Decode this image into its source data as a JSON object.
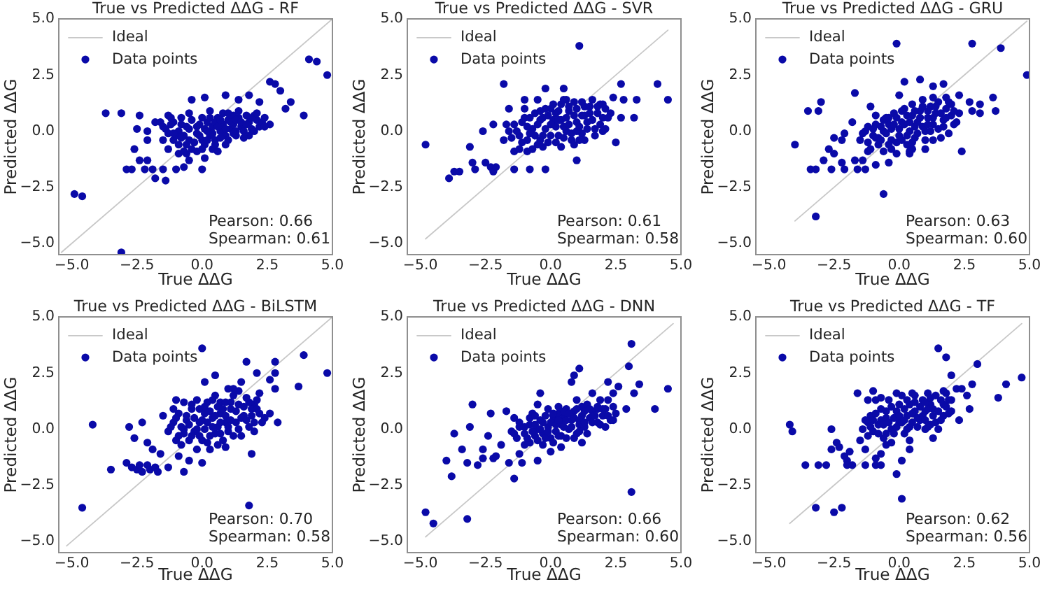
{
  "chart_data": [
    {
      "type": "scatter",
      "title": "True vs Predicted ΔΔG - RF",
      "xlabel": "True ΔΔG",
      "ylabel": "Predicted ΔΔG",
      "xlim": [
        -5.5,
        5
      ],
      "ylim": [
        -5.5,
        5
      ],
      "xticks": [
        {
          "value": -5,
          "label": "−5.0"
        },
        {
          "value": -2.5,
          "label": "−2.5"
        },
        {
          "value": 0,
          "label": "0.0"
        },
        {
          "value": 2.5,
          "label": "2.5"
        },
        {
          "value": 5,
          "label": "5.0"
        }
      ],
      "yticks": [
        {
          "value": -5,
          "label": "−5.0"
        },
        {
          "value": -2.5,
          "label": "−2.5"
        },
        {
          "value": 0,
          "label": "0.0"
        },
        {
          "value": 2.5,
          "label": "2.5"
        },
        {
          "value": 5,
          "label": "5.0"
        }
      ],
      "legend": "top left",
      "marker": "circle",
      "annotations": [
        "Pearson: 0.66",
        "Spearman: 0.61"
      ],
      "series": [
        {
          "name": "Ideal",
          "type": "line",
          "marker": "none",
          "color": "#c8c8c8",
          "x": [
            -5.4,
            5.0
          ],
          "values": [
            -5.4,
            5.0
          ]
        },
        {
          "name": "Data points",
          "color": "#0a0aa8",
          "x": [
            -4.9,
            -4.6,
            -3.7,
            -3.1,
            -3.1,
            -2.4,
            -2.5,
            -2.9,
            -2.7,
            -2.6,
            -2.4,
            -2.1,
            -2.2,
            -1.9,
            -1.8,
            -1.4,
            -1.5,
            -1.0,
            -0.7,
            0.0,
            -2.1,
            -2.1,
            -1.8,
            -1.6,
            -1.3,
            -0.5,
            -0.4,
            0.1,
            0.9,
            1.4,
            1.8,
            2.2,
            2.6,
            2.8,
            3.0,
            3.2,
            3.4,
            3.9,
            4.1,
            4.4,
            4.8,
            2.6,
            2.4,
            2.0,
            -1.5,
            -1.3,
            -1.1,
            -0.9,
            -0.9,
            -0.7,
            -0.6,
            -0.5,
            -0.4,
            -0.2,
            -0.1,
            0.0,
            0.1,
            0.1,
            0.2,
            0.3,
            0.4,
            0.5,
            0.6,
            0.7,
            0.8,
            0.9,
            1.0,
            1.1,
            1.2,
            1.3,
            1.4,
            1.5,
            1.6,
            1.7,
            1.8,
            1.9,
            2.1,
            2.2,
            -1.3,
            -0.9,
            -0.6,
            -0.2,
            -1.5,
            -1.1,
            -0.8,
            0.4,
            0.9,
            1.2,
            1.8,
            2.3,
            -0.5,
            0.1,
            -1.4,
            -1.2,
            -1.0,
            -0.8,
            -0.8,
            -0.6,
            -0.4,
            -0.3,
            -0.2,
            -0.1,
            0.0,
            0.0,
            0.2,
            0.2,
            0.3,
            0.4,
            0.5,
            0.5,
            0.6,
            0.7,
            0.7,
            0.8,
            0.9,
            1.0,
            1.0,
            1.1,
            1.2,
            1.3,
            1.4,
            1.5,
            1.6,
            1.7,
            1.9,
            2.0,
            2.1,
            2.4,
            -1.1,
            -0.5,
            0.3,
            0.6,
            -0.7,
            1.3,
            -1.2
          ],
          "values": [
            -2.8,
            -2.9,
            0.8,
            0.8,
            -5.4,
            0.7,
            0.1,
            -1.7,
            -1.7,
            -0.8,
            -1.3,
            -1.3,
            -1.7,
            -1.7,
            -2.1,
            -2.2,
            -1.7,
            -1.7,
            -1.6,
            -1.7,
            -0.4,
            0.0,
            0.4,
            0.4,
            0.7,
            0.8,
            1.4,
            1.5,
            1.6,
            1.4,
            1.6,
            1.3,
            2.2,
            2.1,
            1.8,
            1.0,
            1.3,
            0.7,
            3.2,
            3.1,
            2.5,
            0.3,
            0.6,
            0.7,
            -0.4,
            -0.1,
            -0.4,
            0.0,
            -0.6,
            -0.2,
            0.2,
            -0.4,
            -0.8,
            -0.1,
            0.3,
            -0.4,
            0.1,
            -0.6,
            0.4,
            -0.2,
            0.2,
            -0.4,
            0.6,
            0.0,
            0.3,
            -0.2,
            0.5,
            0.1,
            0.3,
            -0.2,
            0.6,
            0.2,
            0.0,
            0.7,
            0.4,
            0.1,
            0.5,
            0.2,
            -0.8,
            -1.0,
            -1.0,
            -0.9,
            0.2,
            0.4,
            0.6,
            -0.8,
            -0.6,
            0.7,
            -0.2,
            0.4,
            -1.3,
            -1.2,
            0.1,
            0.3,
            -0.2,
            0.3,
            -0.3,
            -0.6,
            0.5,
            -0.5,
            0.2,
            -0.2,
            0.6,
            -0.8,
            0.0,
            -0.4,
            0.6,
            -0.1,
            0.4,
            -0.6,
            0.2,
            0.5,
            -0.3,
            0.8,
            0.1,
            -0.4,
            0.8,
            0.4,
            -0.1,
            0.5,
            0.9,
            0.4,
            -0.3,
            0.3,
            0.6,
            0.0,
            0.8,
            0.2,
            -0.1,
            0.1,
            0.9,
            -0.9,
            -0.9,
            0.0,
            0.6
          ]
        }
      ]
    },
    {
      "type": "scatter",
      "title": "True vs Predicted ΔΔG - SVR",
      "xlabel": "True ΔΔG",
      "ylabel": "Predicted ΔΔG",
      "xlim": [
        -5.5,
        5
      ],
      "ylim": [
        -5.5,
        5
      ],
      "xticks": [
        {
          "value": -5,
          "label": "−5.0"
        },
        {
          "value": -2.5,
          "label": "−2.5"
        },
        {
          "value": 0,
          "label": "0.0"
        },
        {
          "value": 2.5,
          "label": "2.5"
        },
        {
          "value": 5,
          "label": "5.0"
        }
      ],
      "yticks": [
        {
          "value": -5,
          "label": "−5.0"
        },
        {
          "value": -2.5,
          "label": "−2.5"
        },
        {
          "value": 0,
          "label": "0.0"
        },
        {
          "value": 2.5,
          "label": "2.5"
        },
        {
          "value": 5,
          "label": "5.0"
        }
      ],
      "legend": "top left",
      "marker": "circle",
      "annotations": [
        "Pearson: 0.61",
        "Spearman: 0.58"
      ],
      "series": [
        {
          "name": "Ideal",
          "type": "line",
          "marker": "none",
          "color": "#c8c8c8",
          "x": [
            -4.8,
            4.5
          ],
          "values": [
            -4.8,
            4.5
          ]
        },
        {
          "name": "Data points",
          "color": "#0a0aa8",
          "x": [
            -4.8,
            -3.9,
            -3.7,
            -3.5,
            -3.1,
            -3.0,
            -2.9,
            -2.6,
            -2.5,
            -2.3,
            -2.2,
            -2.2,
            -2.1,
            -1.8,
            -1.7,
            -1.6,
            -1.5,
            -1.4,
            -1.4,
            -1.0,
            -0.9,
            -0.8,
            -0.5,
            -0.2,
            -0.2,
            0.5,
            0.4,
            1.1,
            1.0,
            1.9,
            2.3,
            2.4,
            2.5,
            2.7,
            2.8,
            2.7,
            3.3,
            3.2,
            4.1,
            4.5,
            -1.8,
            -1.6,
            -1.4,
            -1.2,
            -1.0,
            -0.9,
            -0.7,
            -0.6,
            -0.5,
            -0.4,
            -0.3,
            -0.2,
            -0.1,
            0.2,
            0.3,
            0.4,
            0.4,
            0.6,
            0.7,
            0.8,
            0.9,
            1.0,
            1.2,
            1.2,
            1.3,
            1.4,
            1.5,
            1.7,
            1.8,
            2.0,
            2.1,
            2.1,
            -1.2,
            -0.7,
            -0.3,
            1.3,
            0.1,
            0.6,
            1.6,
            2.0,
            -1.0,
            -1.3,
            -1.1,
            -1.1,
            -0.9,
            -0.8,
            -0.6,
            -0.5,
            -0.4,
            -0.4,
            -0.3,
            -0.2,
            -0.1,
            0.0,
            0.0,
            0.1,
            0.2,
            0.2,
            0.3,
            0.3,
            0.5,
            0.5,
            0.6,
            0.7,
            0.7,
            0.8,
            0.9,
            1.0,
            1.0,
            1.1,
            1.1,
            1.3,
            1.4,
            1.5,
            1.6,
            1.7,
            1.8,
            1.9,
            2.0,
            2.2,
            0.0,
            -0.8,
            0.5,
            1.2,
            0.9
          ],
          "values": [
            -0.6,
            -2.1,
            -1.8,
            -1.8,
            -0.7,
            -1.4,
            -1.7,
            0.0,
            -1.4,
            -1.6,
            0.3,
            -1.8,
            -1.6,
            2.1,
            0.3,
            1.0,
            -0.3,
            -0.9,
            -1.7,
            1.4,
            -0.9,
            -1.7,
            1.4,
            -1.7,
            1.9,
            1.9,
            -0.7,
            3.8,
            -1.3,
            1.2,
            0.8,
            1.5,
            -0.5,
            2.1,
            1.4,
            0.6,
            1.4,
            0.6,
            2.1,
            1.4,
            -0.4,
            0.0,
            0.3,
            -0.2,
            0.6,
            -0.4,
            0.1,
            0.8,
            -0.6,
            0.5,
            -0.2,
            1.0,
            -0.5,
            0.8,
            -0.2,
            1.2,
            0.5,
            0.0,
            0.9,
            -0.4,
            1.3,
            0.4,
            0.7,
            -0.1,
            1.1,
            0.4,
            0.8,
            0.1,
            1.1,
            0.6,
            1.0,
            0.1,
            -0.8,
            -0.8,
            -0.7,
            -0.4,
            1.2,
            1.4,
            1.4,
            1.2,
            1.0,
            0.0,
            0.4,
            -0.5,
            0.2,
            0.6,
            -0.2,
            0.3,
            0.9,
            -0.4,
            0.6,
            0.1,
            0.7,
            -0.2,
            1.0,
            0.5,
            -0.5,
            0.2,
            0.9,
            0.5,
            0.2,
            -0.3,
            0.6,
            1.1,
            0.3,
            -0.1,
            0.7,
            0.0,
            1.0,
            0.2,
            -0.4,
            0.7,
            0.1,
            1.1,
            0.5,
            -0.2,
            0.8,
            0.3,
            0.0,
            0.6,
            0.3,
            -0.1,
            1.4,
            1.3,
            -0.6
          ]
        }
      ]
    },
    {
      "type": "scatter",
      "title": "True vs Predicted ΔΔG - GRU",
      "xlabel": "True ΔΔG",
      "ylabel": "Predicted ΔΔG",
      "xlim": [
        -5.5,
        5
      ],
      "ylim": [
        -5.5,
        5
      ],
      "xticks": [
        {
          "value": -5,
          "label": "−5.0"
        },
        {
          "value": -2.5,
          "label": "−2.5"
        },
        {
          "value": 0,
          "label": "0.0"
        },
        {
          "value": 2.5,
          "label": "2.5"
        },
        {
          "value": 5,
          "label": "5.0"
        }
      ],
      "yticks": [
        {
          "value": -5,
          "label": "−5.0"
        },
        {
          "value": -2.5,
          "label": "−2.5"
        },
        {
          "value": 0,
          "label": "0.0"
        },
        {
          "value": 2.5,
          "label": "2.5"
        },
        {
          "value": 5,
          "label": "5.0"
        }
      ],
      "legend": "top left",
      "marker": "circle",
      "annotations": [
        "Pearson: 0.63",
        "Spearman: 0.60"
      ],
      "series": [
        {
          "name": "Ideal",
          "type": "line",
          "marker": "none",
          "color": "#c8c8c8",
          "x": [
            -4.0,
            4.9
          ],
          "values": [
            -4.0,
            4.9
          ]
        },
        {
          "name": "Data points",
          "color": "#0a0aa8",
          "x": [
            -4.0,
            -3.5,
            -3.1,
            -3.0,
            -3.2,
            -3.4,
            -3.2,
            -2.9,
            -2.7,
            -2.6,
            -2.5,
            -2.5,
            -2.2,
            -2.2,
            -2.1,
            -2.1,
            -1.8,
            -1.7,
            -1.7,
            -1.6,
            -1.4,
            -1.3,
            -1.2,
            -1.1,
            -0.9,
            -0.6,
            -0.4,
            -0.1,
            -0.1,
            0.0,
            0.2,
            0.8,
            0.4,
            1.3,
            1.7,
            2.3,
            2.4,
            2.7,
            2.8,
            2.8,
            3.1,
            3.1,
            3.6,
            3.7,
            3.9,
            4.9,
            -0.4,
            -0.8,
            -1.5,
            -1.3,
            -1.0,
            -0.9,
            -0.8,
            -0.6,
            -0.5,
            -0.3,
            -0.3,
            -0.2,
            0.0,
            0.1,
            0.2,
            0.3,
            0.4,
            0.5,
            0.5,
            0.6,
            0.7,
            0.8,
            0.9,
            1.0,
            1.1,
            1.2,
            1.3,
            1.3,
            1.4,
            1.5,
            1.7,
            1.8,
            1.9,
            2.0,
            2.0,
            2.1,
            2.3,
            1.0,
            0.5,
            -0.3,
            1.3,
            1.8,
            -1.1,
            -0.9,
            -1.4,
            -1.2,
            -1.2,
            -1.0,
            -0.9,
            -0.7,
            -0.7,
            -0.6,
            -0.5,
            -0.4,
            -0.4,
            -0.2,
            -0.1,
            -0.1,
            0.0,
            0.1,
            0.1,
            0.2,
            0.3,
            0.3,
            0.4,
            0.5,
            0.6,
            0.6,
            0.7,
            0.8,
            0.9,
            0.9,
            1.0,
            1.1,
            1.1,
            1.2,
            1.3,
            1.4,
            1.5,
            1.6,
            1.7,
            1.8,
            1.9,
            2.1,
            2.2,
            0.4,
            -0.6,
            1.6
          ],
          "values": [
            -0.6,
            0.9,
            0.9,
            1.3,
            -3.8,
            -1.7,
            -1.7,
            -1.3,
            -0.8,
            -1.7,
            -1.0,
            -0.3,
            -0.4,
            -1.4,
            -1.7,
            -0.1,
            0.4,
            1.7,
            -1.3,
            -1.7,
            -1.3,
            -1.7,
            -0.9,
            1.1,
            -1.5,
            -2.8,
            -1.4,
            -1.0,
            3.9,
            1.6,
            2.2,
            2.3,
            -1.0,
            2.0,
            2.1,
            1.6,
            -0.9,
            1.3,
            3.9,
            0.9,
            1.2,
            0.8,
            1.5,
            0.9,
            3.7,
            2.5,
            0.3,
            -0.3,
            -0.4,
            0.0,
            -0.2,
            0.3,
            -0.6,
            0.0,
            0.6,
            -0.4,
            0.1,
            0.8,
            -0.2,
            0.4,
            1.0,
            -0.6,
            0.0,
            0.7,
            1.2,
            -0.3,
            0.4,
            0.9,
            1.4,
            0.0,
            0.6,
            1.1,
            -0.4,
            0.3,
            0.8,
            1.3,
            0.5,
            1.0,
            -0.1,
            0.7,
            1.2,
            0.3,
            0.8,
            -0.8,
            -0.8,
            -0.8,
            1.5,
            1.5,
            -0.8,
            0.7,
            -0.1,
            0.2,
            -0.5,
            0.1,
            -0.3,
            0.2,
            -0.4,
            0.5,
            -0.1,
            -0.6,
            0.6,
            0.3,
            -0.5,
            0.6,
            0.1,
            0.9,
            -0.4,
            0.3,
            0.7,
            -0.2,
            0.4,
            -0.5,
            0.2,
            0.9,
            -0.1,
            0.6,
            0.2,
            1.1,
            -0.4,
            0.3,
            0.9,
            0.0,
            0.6,
            1.1,
            0.1,
            0.8,
            0.2,
            0.6,
            1.3,
            0.9,
            0.4,
            -0.9,
            -0.9,
            -0.3
          ]
        }
      ]
    },
    {
      "type": "scatter",
      "title": "True vs Predicted ΔΔG - BiLSTM",
      "xlabel": "True ΔΔG",
      "ylabel": "Predicted ΔΔG",
      "xlim": [
        -5.5,
        5
      ],
      "ylim": [
        -5.5,
        5
      ],
      "xticks": [
        {
          "value": -5,
          "label": "−5.0"
        },
        {
          "value": -2.5,
          "label": "−2.5"
        },
        {
          "value": 0,
          "label": "0.0"
        },
        {
          "value": 2.5,
          "label": "2.5"
        },
        {
          "value": 5,
          "label": "5.0"
        }
      ],
      "yticks": [
        {
          "value": -5,
          "label": "−5.0"
        },
        {
          "value": -2.5,
          "label": "−2.5"
        },
        {
          "value": 0,
          "label": "0.0"
        },
        {
          "value": 2.5,
          "label": "2.5"
        },
        {
          "value": 5,
          "label": "5.0"
        }
      ],
      "legend": "top left",
      "marker": "circle",
      "annotations": [
        "Pearson: 0.70",
        "Spearman: 0.58"
      ],
      "series": [
        {
          "name": "Ideal",
          "type": "line",
          "marker": "none",
          "color": "#c8c8c8",
          "x": [
            -5.2,
            5.0
          ],
          "values": [
            -5.2,
            5.0
          ]
        },
        {
          "name": "Data points",
          "color": "#0a0aa8",
          "x": [
            -4.6,
            -4.2,
            -3.5,
            -2.9,
            -2.8,
            -2.6,
            -2.7,
            -2.5,
            -2.4,
            -2.3,
            -2.1,
            -2.0,
            -2.3,
            -2.1,
            -1.9,
            -1.8,
            -1.7,
            -1.6,
            -1.5,
            -1.3,
            -1.0,
            -0.9,
            -0.7,
            -0.5,
            0.0,
            0.0,
            0.1,
            0.5,
            0.7,
            1.0,
            1.5,
            1.7,
            1.9,
            1.8,
            2.1,
            2.2,
            2.6,
            2.8,
            2.8,
            2.8,
            2.9,
            3.7,
            3.9,
            4.8,
            2.4,
            2.6,
            2.0,
            -1.3,
            -1.1,
            -0.9,
            -0.9,
            -0.7,
            -0.6,
            -0.5,
            -0.4,
            -0.3,
            -0.2,
            -0.1,
            0.0,
            0.1,
            0.1,
            0.2,
            0.3,
            0.4,
            0.5,
            0.6,
            0.7,
            0.8,
            0.9,
            0.9,
            1.0,
            1.1,
            1.2,
            1.3,
            1.4,
            1.5,
            1.6,
            1.7,
            1.8,
            1.9,
            2.0,
            2.1,
            -0.2,
            0.3,
            0.9,
            -0.7,
            -1.1,
            1.4,
            2.2,
            -1.2,
            -1.0,
            -1.0,
            -0.8,
            -0.7,
            -0.6,
            -0.5,
            -0.4,
            -0.3,
            -0.2,
            -0.1,
            -0.1,
            0.0,
            0.1,
            0.2,
            0.2,
            0.3,
            0.4,
            0.5,
            0.5,
            0.6,
            0.7,
            0.7,
            0.8,
            0.9,
            1.0,
            1.1,
            1.1,
            1.2,
            1.3,
            1.4,
            1.5,
            1.6,
            1.7,
            1.8,
            1.9,
            2.0,
            2.1,
            -0.4,
            0.4,
            -0.8,
            0.6,
            1.2,
            2.3
          ],
          "values": [
            -3.5,
            0.2,
            -1.8,
            -1.5,
            0.1,
            -0.4,
            -1.7,
            -1.8,
            -1.6,
            -1.9,
            -1.6,
            -1.8,
            0.3,
            -0.6,
            -0.9,
            -1.7,
            -1.9,
            -1.1,
            0.6,
            -1.7,
            1.3,
            -1.2,
            -1.9,
            -1.4,
            -1.5,
            3.6,
            2.1,
            2.4,
            1.2,
            1.8,
            2.1,
            3.0,
            -1.1,
            -3.4,
            2.5,
            1.6,
            2.2,
            3.0,
            2.5,
            1.8,
            0.3,
            1.9,
            3.3,
            2.5,
            0.5,
            0.7,
            1.1,
            -0.1,
            0.3,
            -0.3,
            0.7,
            0.0,
            0.4,
            -0.5,
            0.9,
            -0.1,
            1.3,
            0.3,
            -0.5,
            0.7,
            0.0,
            1.2,
            -0.3,
            0.5,
            1.5,
            0.1,
            0.7,
            -0.5,
            1.2,
            0.3,
            -0.1,
            0.9,
            1.5,
            0.3,
            1.1,
            -0.3,
            0.6,
            1.4,
            0.1,
            0.9,
            0.3,
            1.3,
            -0.9,
            -0.9,
            -0.8,
            1.2,
            0.9,
            1.7,
            0.7,
            0.1,
            0.5,
            -0.5,
            0.1,
            -0.2,
            0.6,
            0.2,
            -0.3,
            0.5,
            0.0,
            0.9,
            -0.3,
            0.4,
            1.0,
            -0.6,
            0.3,
            0.8,
            0.1,
            -0.2,
            0.6,
            1.0,
            0.3,
            -0.2,
            0.9,
            0.6,
            0.1,
            1.2,
            0.4,
            -0.3,
            0.8,
            0.0,
            0.5,
            1.0,
            0.4,
            1.2,
            0.6,
            -0.1,
            0.9,
            1.1,
            1.3,
            -0.7,
            -0.7,
            1.8,
            0.3
          ]
        }
      ]
    },
    {
      "type": "scatter",
      "title": "True vs Predicted ΔΔG - DNN",
      "xlabel": "True ΔΔG",
      "ylabel": "Predicted ΔΔG",
      "xlim": [
        -5.5,
        5
      ],
      "ylim": [
        -5.5,
        5
      ],
      "xticks": [
        {
          "value": -5,
          "label": "−5.0"
        },
        {
          "value": -2.5,
          "label": "−2.5"
        },
        {
          "value": 0,
          "label": "0.0"
        },
        {
          "value": 2.5,
          "label": "2.5"
        },
        {
          "value": 5,
          "label": "5.0"
        }
      ],
      "yticks": [
        {
          "value": -5,
          "label": "−5.0"
        },
        {
          "value": -2.5,
          "label": "−2.5"
        },
        {
          "value": 0,
          "label": "0.0"
        },
        {
          "value": 2.5,
          "label": "2.5"
        },
        {
          "value": 5,
          "label": "5.0"
        }
      ],
      "legend": "top left",
      "marker": "circle",
      "annotations": [
        "Pearson: 0.66",
        "Spearman: 0.60"
      ],
      "series": [
        {
          "name": "Ideal",
          "type": "line",
          "marker": "none",
          "color": "#c8c8c8",
          "x": [
            -4.8,
            4.7
          ],
          "values": [
            -4.8,
            4.7
          ]
        },
        {
          "name": "Data points",
          "color": "#0a0aa8",
          "x": [
            -4.8,
            -4.5,
            -4.0,
            -3.8,
            -3.7,
            -3.4,
            -3.2,
            -3.2,
            -3.1,
            -3.0,
            -2.8,
            -2.6,
            -2.6,
            -2.3,
            -2.2,
            -2.1,
            -1.9,
            -1.7,
            -1.6,
            -1.5,
            -1.4,
            -1.4,
            -1.2,
            -1.1,
            -1.0,
            -0.5,
            -0.4,
            -0.5,
            0.0,
            0.1,
            0.8,
            0.9,
            1.1,
            1.8,
            2.2,
            2.4,
            2.6,
            3.0,
            3.1,
            2.9,
            3.1,
            3.4,
            3.2,
            4.0,
            4.5,
            2.4,
            2.2,
            -2.4,
            -1.4,
            -1.2,
            -1.0,
            -0.8,
            -0.6,
            -0.5,
            -0.4,
            -0.3,
            -0.1,
            0.0,
            0.1,
            0.2,
            0.3,
            0.4,
            0.4,
            0.5,
            0.6,
            0.7,
            0.8,
            0.9,
            1.0,
            1.1,
            1.2,
            1.2,
            1.3,
            1.4,
            1.5,
            1.6,
            1.8,
            1.9,
            2.0,
            2.1,
            2.1,
            2.2,
            2.4,
            -0.8,
            -0.3,
            0.4,
            1.2,
            -0.7,
            -0.1,
            1.6,
            -1.3,
            -1.2,
            -1.0,
            -0.9,
            -0.8,
            -0.7,
            -0.6,
            -0.5,
            -0.4,
            -0.3,
            -0.2,
            -0.2,
            -0.1,
            0.0,
            0.1,
            0.1,
            0.2,
            0.3,
            0.3,
            0.5,
            0.5,
            0.6,
            0.6,
            0.7,
            0.8,
            0.9,
            0.9,
            1.0,
            1.1,
            1.1,
            1.3,
            1.3,
            1.4,
            1.5,
            1.6,
            1.7,
            1.8,
            1.9,
            2.0,
            2.3,
            2.5,
            0.3,
            -0.6,
            1.0
          ],
          "values": [
            -3.7,
            -4.2,
            -1.4,
            -2.1,
            -0.2,
            -0.9,
            -1.5,
            -4.0,
            0.1,
            1.1,
            -1.6,
            -0.9,
            -1.3,
            0.7,
            -1.3,
            -1.2,
            -0.7,
            0.8,
            -1.5,
            -0.1,
            -2.2,
            0.5,
            -1.1,
            -1.5,
            -0.7,
            1.1,
            1.6,
            -1.4,
            -1.0,
            0.6,
            2.1,
            2.4,
            2.7,
            0.9,
            2.1,
            1.6,
            1.9,
            2.8,
            3.8,
            0.9,
            -2.8,
            2.0,
            1.6,
            0.9,
            1.8,
            0.4,
            1.3,
            -0.3,
            -0.2,
            0.1,
            -0.2,
            0.2,
            -0.3,
            0.0,
            0.4,
            -0.2,
            0.1,
            -0.4,
            0.4,
            -0.1,
            0.7,
            0.2,
            -0.3,
            0.5,
            0.9,
            0.0,
            0.4,
            0.8,
            -0.2,
            0.2,
            1.0,
            0.6,
            0.1,
            1.1,
            0.5,
            0.8,
            0.3,
            1.3,
            0.6,
            0.9,
            0.1,
            0.6,
            1.0,
            -0.6,
            -0.7,
            -0.8,
            -0.6,
            0.7,
            0.9,
            1.6,
            -0.4,
            0.3,
            0.1,
            -0.4,
            0.5,
            -0.1,
            0.2,
            -0.5,
            0.0,
            0.3,
            -0.4,
            0.6,
            -0.1,
            0.3,
            0.7,
            -0.6,
            0.2,
            -0.3,
            0.4,
            0.1,
            0.8,
            -0.4,
            0.4,
            0.7,
            0.1,
            0.5,
            -0.4,
            0.9,
            0.4,
            -0.1,
            0.8,
            0.3,
            -0.2,
            0.9,
            0.3,
            0.6,
            1.0,
            0.2,
            0.9,
            0.4,
            0.7,
            1.0,
            0.6,
            1.3
          ]
        }
      ]
    },
    {
      "type": "scatter",
      "title": "True vs Predicted ΔΔG - TF",
      "xlabel": "True ΔΔG",
      "ylabel": "Predicted ΔΔG",
      "xlim": [
        -5.5,
        5
      ],
      "ylim": [
        -5.5,
        5
      ],
      "xticks": [
        {
          "value": -5,
          "label": "−5.0"
        },
        {
          "value": -2.5,
          "label": "−2.5"
        },
        {
          "value": 0,
          "label": "0.0"
        },
        {
          "value": 2.5,
          "label": "2.5"
        },
        {
          "value": 5,
          "label": "5.0"
        }
      ],
      "yticks": [
        {
          "value": -5,
          "label": "−5.0"
        },
        {
          "value": -2.5,
          "label": "−2.5"
        },
        {
          "value": 0,
          "label": "0.0"
        },
        {
          "value": 2.5,
          "label": "2.5"
        },
        {
          "value": 5,
          "label": "5.0"
        }
      ],
      "legend": "top left",
      "marker": "circle",
      "annotations": [
        "Pearson: 0.62",
        "Spearman: 0.56"
      ],
      "series": [
        {
          "name": "Ideal",
          "type": "line",
          "marker": "none",
          "color": "#c8c8c8",
          "x": [
            -4.2,
            4.7
          ],
          "values": [
            -4.2,
            4.7
          ]
        },
        {
          "name": "Data points",
          "color": "#0a0aa8",
          "x": [
            -4.2,
            -4.1,
            -3.6,
            -3.2,
            -3.1,
            -2.8,
            -2.5,
            -2.2,
            -2.6,
            -2.6,
            -2.4,
            -2.3,
            -2.1,
            -2.0,
            -2.0,
            -1.9,
            -1.8,
            -1.6,
            -1.5,
            -1.3,
            -1.3,
            -1.2,
            -1.0,
            -0.9,
            -0.9,
            -0.7,
            -0.7,
            -0.5,
            -0.1,
            0.1,
            0.1,
            0.4,
            1.5,
            1.8,
            2.0,
            2.2,
            2.3,
            2.6,
            2.7,
            2.8,
            3.0,
            3.8,
            4.1,
            4.7,
            2.4,
            2.0,
            1.7,
            1.0,
            -1.4,
            -1.2,
            -1.1,
            -1.0,
            -0.8,
            -0.7,
            -0.6,
            -0.5,
            -0.4,
            -0.3,
            -0.1,
            0.0,
            0.1,
            0.2,
            0.3,
            0.4,
            0.4,
            0.5,
            0.6,
            0.8,
            0.9,
            1.0,
            1.1,
            1.2,
            1.2,
            1.3,
            1.4,
            1.5,
            1.7,
            1.8,
            1.9,
            -0.3,
            0.4,
            1.3,
            -1.2,
            -0.9,
            -0.1,
            -1.3,
            -1.1,
            -1.0,
            -0.9,
            -0.8,
            -0.7,
            -0.6,
            -0.5,
            -0.5,
            -0.4,
            -0.3,
            -0.2,
            -0.1,
            0.0,
            0.0,
            0.1,
            0.2,
            0.2,
            0.3,
            0.3,
            0.5,
            0.5,
            0.6,
            0.7,
            0.7,
            0.8,
            0.9,
            1.0,
            1.0,
            1.1,
            1.1,
            1.2,
            1.3,
            1.4,
            1.5,
            1.6,
            1.6,
            1.8,
            1.9,
            2.0,
            -0.7,
            0.6,
            1.7,
            -0.2
          ],
          "values": [
            0.2,
            -0.1,
            -1.6,
            -3.5,
            -1.6,
            -1.6,
            -3.7,
            -3.5,
            -0.9,
            0.0,
            -0.6,
            -0.8,
            -1.2,
            -1.4,
            -1.6,
            -1.0,
            -1.6,
            1.6,
            -0.5,
            -0.9,
            -1.6,
            1.3,
            1.7,
            -1.3,
            -1.6,
            -1.1,
            -1.6,
            -0.7,
            -2.0,
            -3.1,
            -1.4,
            -0.9,
            3.6,
            3.2,
            2.4,
            1.8,
            0.4,
            1.5,
            0.9,
            2.0,
            2.9,
            1.4,
            2.0,
            2.3,
            1.8,
            1.3,
            0.6,
            0.0,
            0.0,
            0.3,
            0.6,
            -0.1,
            0.2,
            0.9,
            -0.4,
            0.5,
            1.3,
            0.0,
            0.8,
            0.3,
            1.5,
            -0.2,
            0.6,
            1.1,
            0.1,
            1.6,
            0.8,
            0.4,
            1.3,
            0.8,
            1.6,
            0.2,
            1.1,
            0.6,
            1.5,
            0.0,
            1.1,
            1.6,
            0.7,
            -0.6,
            -0.5,
            -0.4,
            -0.3,
            1.3,
            1.6,
            0.4,
            0.1,
            0.4,
            0.7,
            -0.2,
            0.4,
            0.2,
            0.8,
            -0.2,
            0.3,
            1.0,
            0.5,
            0.1,
            0.6,
            1.1,
            0.3,
            0.9,
            0.4,
            1.3,
            0.0,
            0.3,
            0.7,
            1.2,
            0.5,
            0.1,
            1.0,
            0.6,
            1.2,
            0.4,
            0.1,
            0.9,
            1.4,
            0.9,
            0.3,
            0.8,
            1.3,
            0.4,
            1.0,
            1.3,
            0.8,
            1.4,
            1.5,
            1.7,
            -0.2
          ]
        }
      ]
    }
  ]
}
